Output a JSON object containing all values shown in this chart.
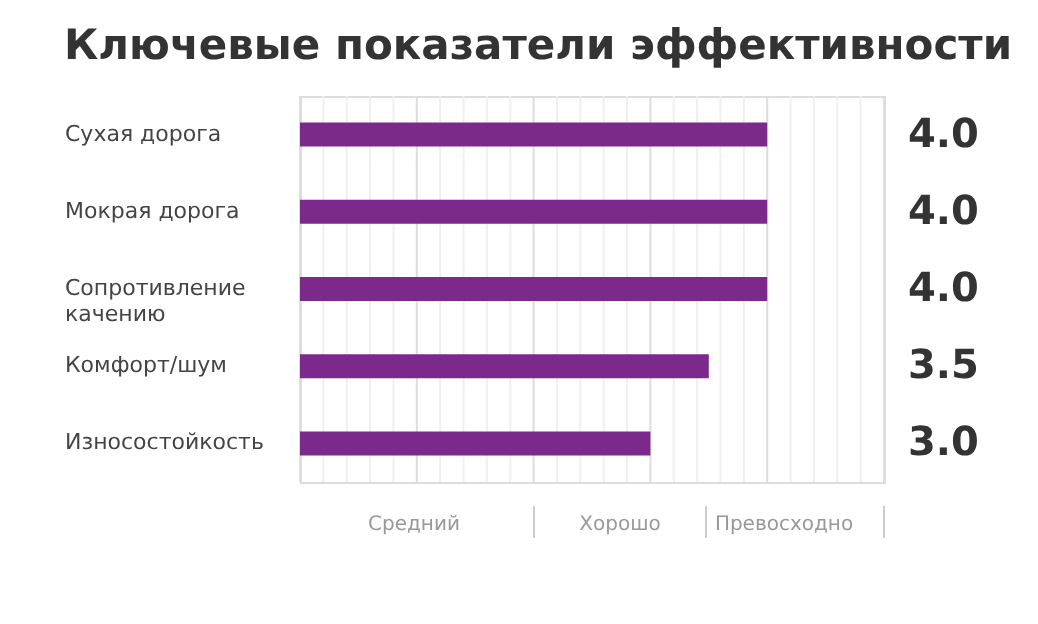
{
  "chart_data": {
    "type": "bar",
    "orientation": "horizontal",
    "title": "Ключевые показатели эффективности",
    "categories": [
      "Сухая дорога",
      "Мокрая дорога",
      "Сопротивление качению",
      "Комфорт/шум",
      "Износостойкость"
    ],
    "values": [
      4.0,
      4.0,
      4.0,
      3.5,
      3.0
    ],
    "value_labels": [
      "4.0",
      "4.0",
      "4.0",
      "3.5",
      "3.0"
    ],
    "color": "#7b2a8c",
    "xlim": [
      0,
      5
    ],
    "annotations": [
      "Средний",
      "Хорошо",
      "Превосходно"
    ],
    "grid": "x"
  }
}
